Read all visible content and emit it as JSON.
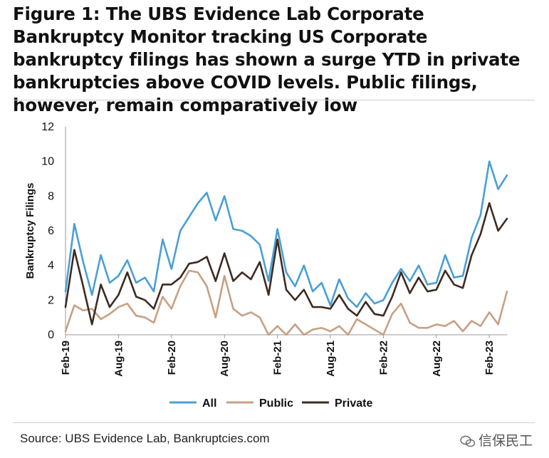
{
  "title": "Figure 1: The UBS Evidence Lab Corporate Bankruptcy Monitor tracking US Corporate bankruptcy filings has shown a surge YTD in private bankruptcies above COVID levels. Public filings, however, remain comparatively low",
  "source": "Source: UBS Evidence Lab, Bankruptcies.com",
  "watermark": "信保民工",
  "chart_data": {
    "type": "line",
    "title": "",
    "ylabel": "Bankruptcy Filings",
    "xlabel": "",
    "ylim": [
      0,
      12
    ],
    "yticks": [
      0,
      2,
      4,
      6,
      8,
      10,
      12
    ],
    "x_range": [
      "2019-02",
      "2023-04"
    ],
    "xticks": [
      "Feb-19",
      "Aug-19",
      "Feb-20",
      "Aug-20",
      "Feb-21",
      "Aug-21",
      "Feb-22",
      "Aug-22",
      "Feb-23"
    ],
    "grid": false,
    "legend_position": "bottom",
    "colors": {
      "All": "#4a9fd4",
      "Public": "#c8a083",
      "Private": "#3d2b22"
    },
    "x": [
      "2019-02",
      "2019-03",
      "2019-04",
      "2019-05",
      "2019-06",
      "2019-07",
      "2019-08",
      "2019-09",
      "2019-10",
      "2019-11",
      "2019-12",
      "2020-01",
      "2020-02",
      "2020-03",
      "2020-04",
      "2020-05",
      "2020-06",
      "2020-07",
      "2020-08",
      "2020-09",
      "2020-10",
      "2020-11",
      "2020-12",
      "2021-01",
      "2021-02",
      "2021-03",
      "2021-04",
      "2021-05",
      "2021-06",
      "2021-07",
      "2021-08",
      "2021-09",
      "2021-10",
      "2021-11",
      "2021-12",
      "2022-01",
      "2022-02",
      "2022-03",
      "2022-04",
      "2022-05",
      "2022-06",
      "2022-07",
      "2022-08",
      "2022-09",
      "2022-10",
      "2022-11",
      "2022-12",
      "2023-01",
      "2023-02",
      "2023-03",
      "2023-04"
    ],
    "series": [
      {
        "name": "All",
        "values": [
          2.5,
          6.4,
          4.2,
          2.3,
          4.6,
          3.0,
          3.4,
          4.3,
          3.0,
          3.3,
          2.5,
          5.5,
          3.8,
          6.0,
          6.8,
          7.6,
          8.2,
          6.6,
          8.0,
          6.1,
          6.0,
          5.7,
          5.2,
          3.1,
          6.1,
          3.6,
          2.8,
          4.0,
          2.5,
          3.0,
          1.7,
          3.2,
          2.1,
          1.6,
          2.4,
          1.8,
          2.0,
          3.0,
          3.8,
          3.1,
          4.0,
          2.9,
          3.0,
          4.6,
          3.3,
          3.4,
          5.6,
          6.9,
          10.0,
          8.4,
          9.2
        ]
      },
      {
        "name": "Public",
        "values": [
          0.2,
          1.7,
          1.4,
          1.5,
          0.9,
          1.2,
          1.6,
          1.8,
          1.1,
          1.0,
          0.7,
          2.2,
          1.5,
          2.8,
          3.7,
          3.6,
          2.8,
          1.0,
          3.4,
          1.5,
          1.1,
          1.3,
          1.0,
          0.0,
          0.5,
          0.0,
          0.6,
          0.0,
          0.3,
          0.4,
          0.2,
          0.5,
          0.0,
          0.9,
          0.6,
          0.3,
          0.0,
          1.2,
          1.8,
          0.7,
          0.4,
          0.4,
          0.6,
          0.5,
          0.8,
          0.2,
          0.8,
          0.5,
          1.3,
          0.6,
          2.5
        ]
      },
      {
        "name": "Private",
        "values": [
          1.6,
          4.9,
          2.8,
          0.6,
          2.9,
          1.6,
          2.3,
          3.6,
          2.2,
          2.0,
          1.5,
          2.9,
          2.9,
          3.3,
          4.1,
          4.2,
          4.5,
          3.1,
          4.7,
          3.1,
          3.6,
          3.2,
          4.2,
          2.3,
          5.5,
          2.6,
          2.0,
          2.6,
          1.6,
          1.6,
          1.5,
          2.3,
          1.5,
          1.1,
          1.9,
          1.2,
          1.1,
          2.2,
          3.6,
          2.4,
          3.3,
          2.5,
          2.6,
          3.7,
          2.9,
          2.7,
          4.6,
          5.8,
          7.6,
          6.0,
          6.7
        ]
      }
    ]
  }
}
